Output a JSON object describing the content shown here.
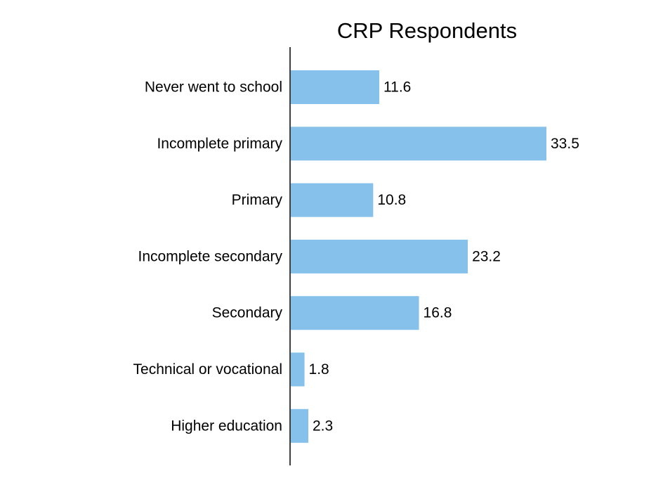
{
  "chart_data": {
    "type": "bar",
    "orientation": "horizontal",
    "title": "CRP Respondents",
    "categories": [
      "Never went to school",
      "Incomplete primary",
      "Primary",
      "Incomplete secondary",
      "Secondary",
      "Technical or vocational",
      "Higher education"
    ],
    "values": [
      11.6,
      33.5,
      10.8,
      23.2,
      16.8,
      1.8,
      2.3
    ],
    "xlabel": "",
    "ylabel": "",
    "xlim": [
      0,
      40
    ],
    "grid": false,
    "legend": "none",
    "bar_color": "#85C1EA",
    "axis_color": "#000000"
  }
}
